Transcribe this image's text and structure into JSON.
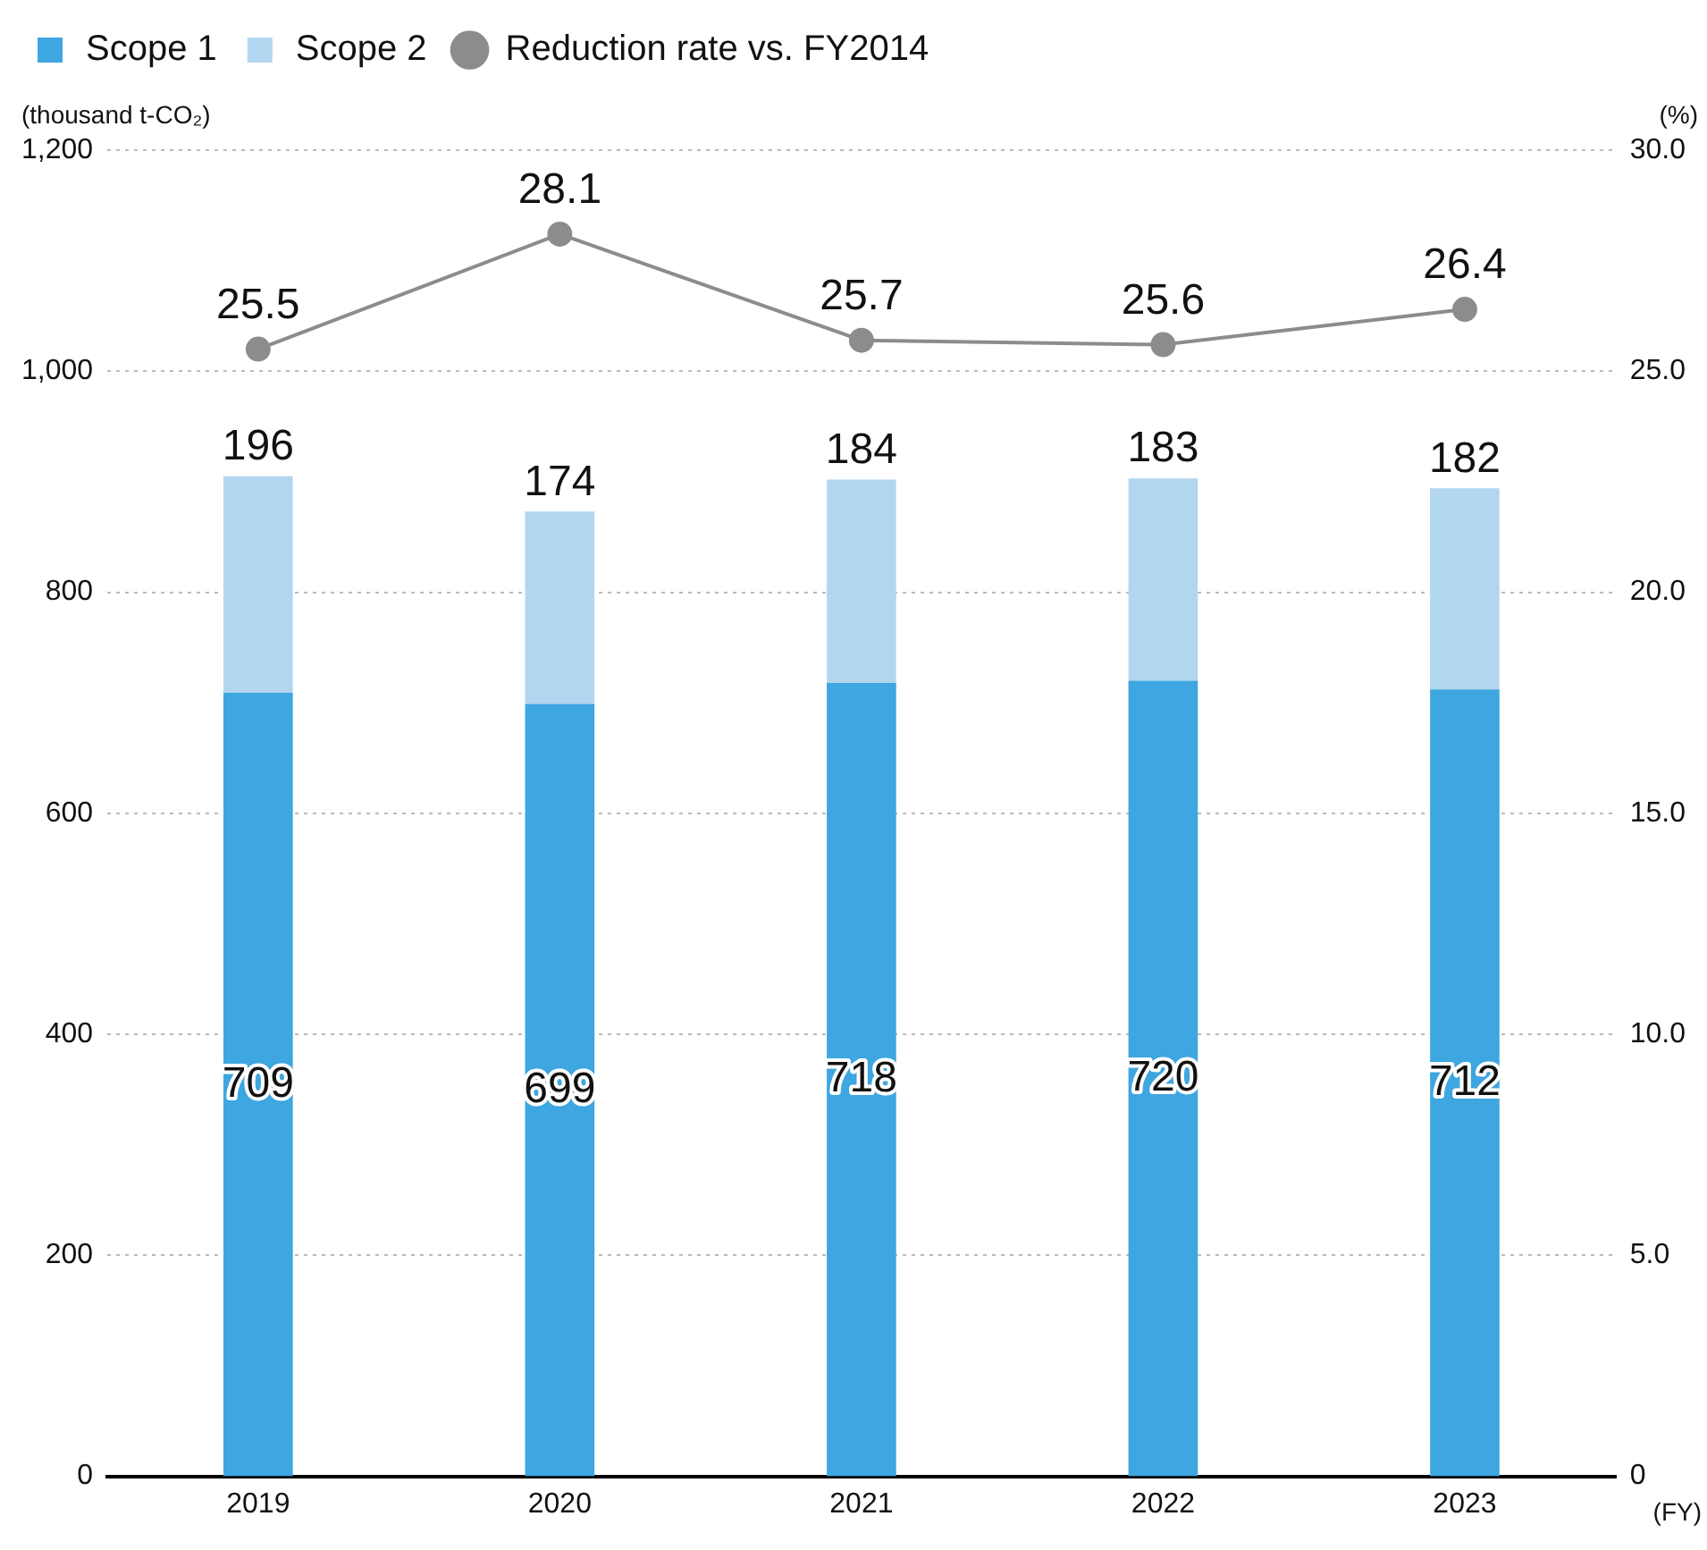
{
  "chart_data": {
    "type": "bar",
    "stacked": true,
    "categories": [
      "2019",
      "2020",
      "2021",
      "2022",
      "2023"
    ],
    "series": [
      {
        "name": "Scope 1",
        "color": "#3ea6e0",
        "values": [
          709,
          699,
          718,
          720,
          712
        ]
      },
      {
        "name": "Scope 2",
        "color": "#b3d6f0",
        "values": [
          196,
          174,
          184,
          183,
          182
        ]
      },
      {
        "name": "Reduction rate vs. FY2014",
        "type": "line",
        "axis": "y2",
        "color": "#8c8c8c",
        "values": [
          25.5,
          28.1,
          25.7,
          25.6,
          26.4
        ]
      }
    ],
    "ylabel": "(thousand t-CO₂)",
    "y2label": "(%)",
    "xlabel": "(FY)",
    "ylim": [
      0,
      1200
    ],
    "yticks": [
      0,
      200,
      400,
      600,
      800,
      {
        "value": 1000,
        "label": "1,000"
      },
      {
        "value": 1200,
        "label": "1,200"
      }
    ],
    "y2lim": [
      0,
      30
    ],
    "y2ticks": [
      0,
      {
        "value": 5,
        "label": "5.0"
      },
      {
        "value": 10,
        "label": "10.0"
      },
      {
        "value": 15,
        "label": "15.0"
      },
      {
        "value": 20,
        "label": "20.0"
      },
      {
        "value": 25,
        "label": "25.0"
      },
      {
        "value": 30,
        "label": "30.0"
      }
    ],
    "grid": "y",
    "legend": "top left",
    "marker": "circle",
    "line_style": "solid",
    "data_labels": true
  }
}
